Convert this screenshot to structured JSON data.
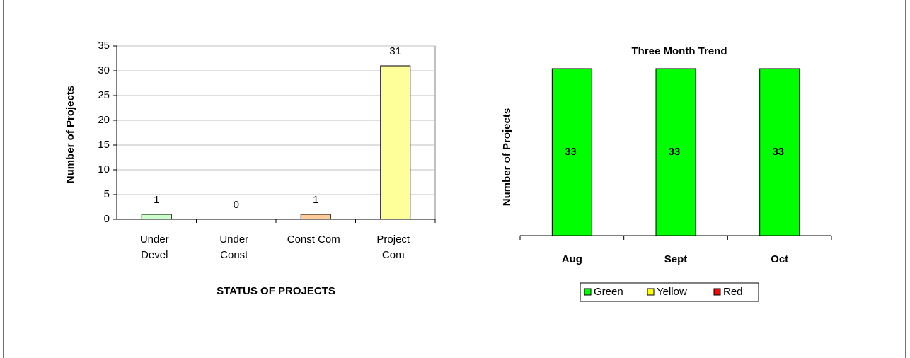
{
  "chart_data": [
    {
      "type": "bar",
      "y_label": "Number of Projects",
      "x_label": "STATUS OF PROJECTS",
      "categories": [
        "Under\nDevel",
        "Under\nConst",
        "Const Com",
        "Project\nCom"
      ],
      "values": [
        1,
        0,
        1,
        31
      ],
      "colors": [
        "#ccffcc",
        "#99ccff",
        "#ffcc99",
        "#ffff99"
      ],
      "ylim": [
        0,
        35
      ],
      "yticks": [
        0,
        5,
        10,
        15,
        20,
        25,
        30,
        35
      ],
      "grid": true
    },
    {
      "type": "stacked_bar",
      "title": "Three Month Trend",
      "y_label": "Number of Projects",
      "categories": [
        "Aug",
        "Sept",
        "Oct"
      ],
      "series": [
        {
          "name": "Green",
          "color": "#00ff00",
          "values": [
            33,
            33,
            33
          ]
        },
        {
          "name": "Yellow",
          "color": "#ffff00",
          "values": [
            0,
            0,
            0
          ]
        },
        {
          "name": "Red",
          "color": "#ff0000",
          "values": [
            0,
            0,
            0
          ]
        }
      ],
      "legend": "bottom"
    }
  ]
}
